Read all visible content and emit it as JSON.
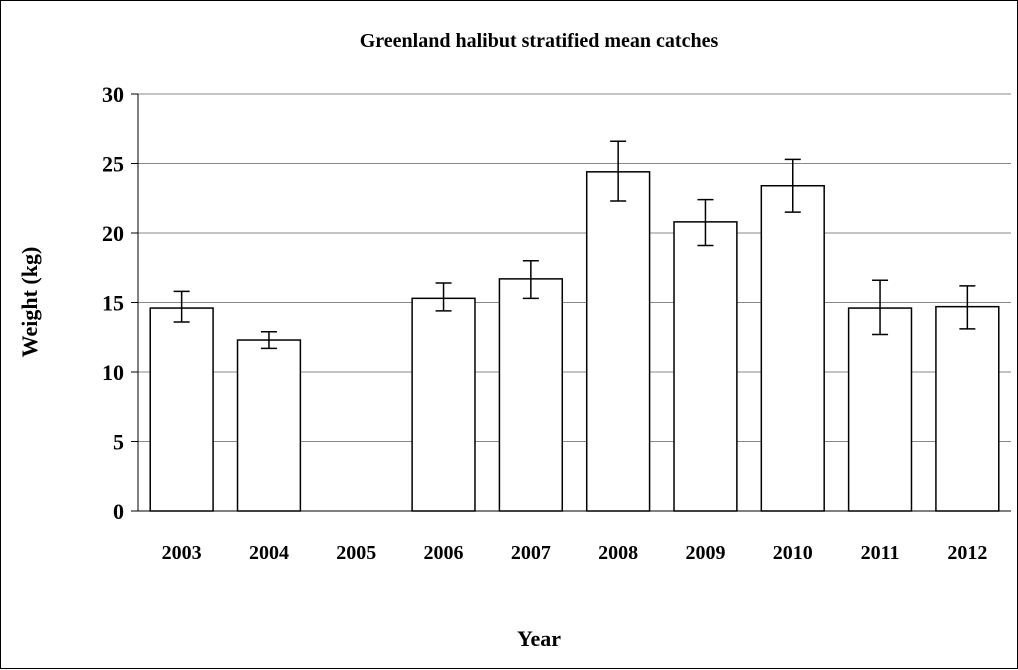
{
  "chart_data": {
    "type": "bar",
    "title": "Greenland halibut stratified mean catches",
    "xlabel": "Year",
    "ylabel": "Weight (kg)",
    "categories": [
      "2003",
      "2004",
      "2005",
      "2006",
      "2007",
      "2008",
      "2009",
      "2010",
      "2011",
      "2012"
    ],
    "values": [
      14.6,
      12.3,
      null,
      15.3,
      16.7,
      24.4,
      20.8,
      23.4,
      14.6,
      14.7
    ],
    "error_low": [
      13.6,
      11.7,
      null,
      14.4,
      15.3,
      22.3,
      19.1,
      21.5,
      12.7,
      13.1
    ],
    "error_high": [
      15.8,
      12.9,
      null,
      16.4,
      18.0,
      26.6,
      22.4,
      25.3,
      16.6,
      16.2
    ],
    "ylim": [
      0,
      30
    ],
    "yticks": [
      "0",
      "5",
      "10",
      "15",
      "20",
      "25",
      "30"
    ],
    "grid": true,
    "bar_fill": "#ffffff",
    "bar_stroke": "#000000",
    "grid_color": "#888888"
  }
}
